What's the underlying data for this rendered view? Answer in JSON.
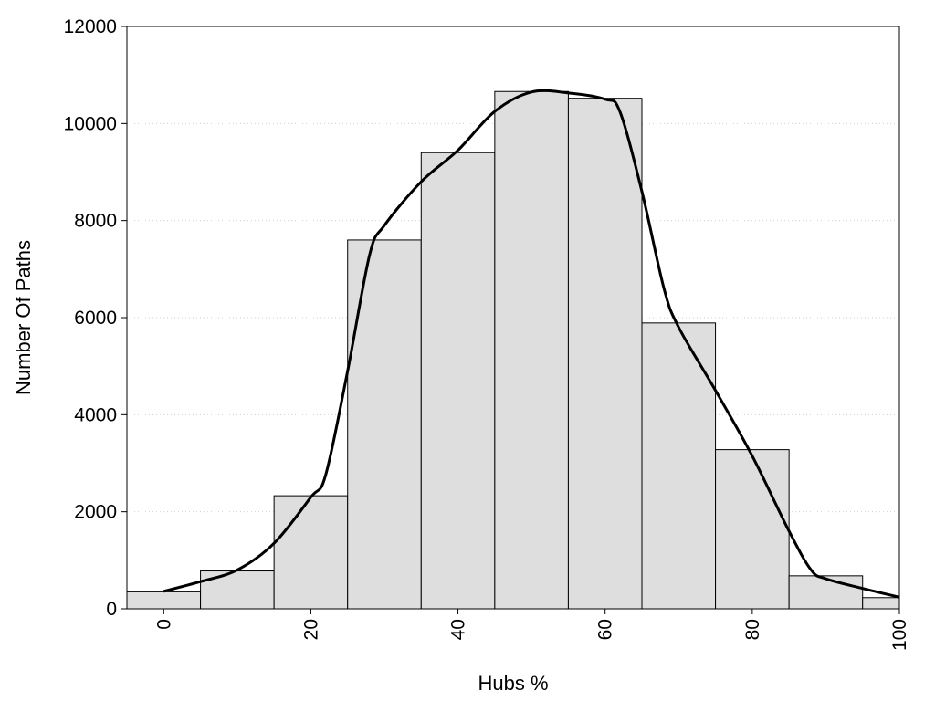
{
  "chart_data": {
    "type": "bar",
    "title": "",
    "xlabel": "Hubs %",
    "ylabel": "Number Of Paths",
    "xlim": [
      -5,
      100
    ],
    "ylim": [
      0,
      12000
    ],
    "x_ticks": [
      "0",
      "20",
      "40",
      "60",
      "80",
      "100"
    ],
    "y_ticks": [
      "0",
      "2000",
      "4000",
      "6000",
      "8000",
      "10000",
      "12000"
    ],
    "grid": "horizontal dotted",
    "legend": "none",
    "bar_color": "#dedede",
    "edge_color": "#000000",
    "series": [
      {
        "type": "bar",
        "bin_width": 10,
        "centers": [
          0,
          10,
          20,
          30,
          40,
          50,
          60,
          70,
          80,
          90,
          100
        ],
        "values": [
          350,
          780,
          2330,
          7600,
          9400,
          10660,
          10520,
          5890,
          3280,
          680,
          230
        ]
      },
      {
        "type": "line",
        "color": "#000000",
        "x": [
          0,
          5,
          10,
          15,
          20,
          22,
          25,
          28,
          30,
          35,
          40,
          45,
          50,
          55,
          60,
          62,
          65,
          68,
          70,
          75,
          80,
          85,
          88,
          90,
          95,
          100
        ],
        "y": [
          360,
          560,
          800,
          1350,
          2300,
          2750,
          4900,
          7300,
          7900,
          8800,
          9450,
          10250,
          10650,
          10630,
          10500,
          10250,
          8600,
          6600,
          5800,
          4500,
          3150,
          1600,
          800,
          620,
          420,
          240
        ]
      }
    ]
  }
}
